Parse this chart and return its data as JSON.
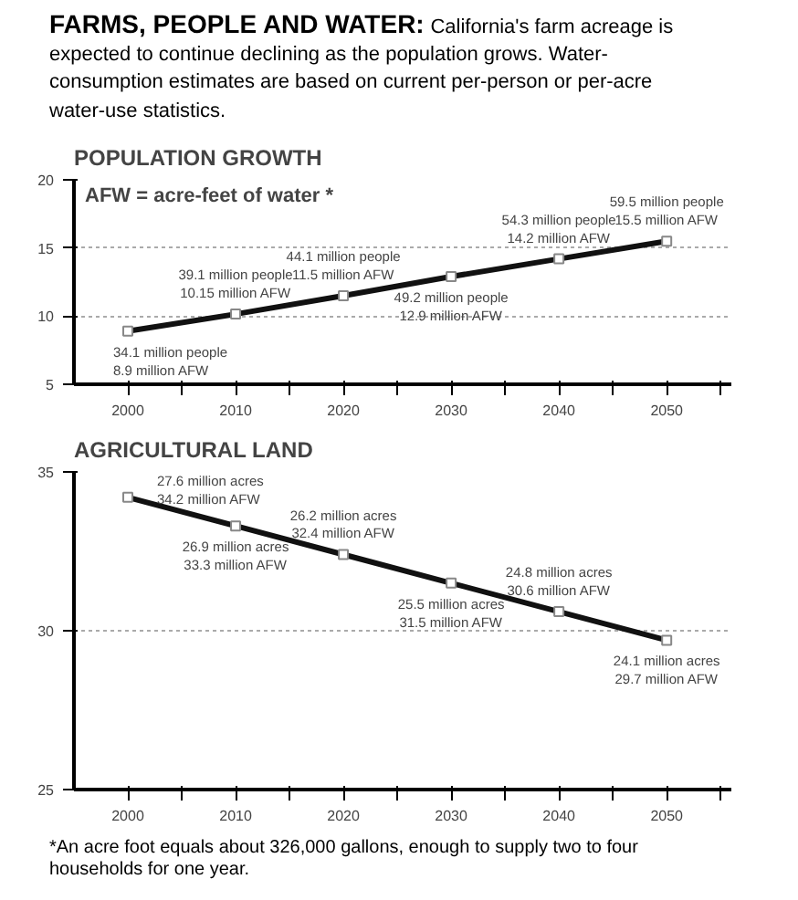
{
  "chart_data": [
    {
      "type": "other",
      "title": "FARMS, PEOPLE AND WATER:",
      "subtitle": "California's farm acreage is expected to continue declining as the population grows. Water-consumption estimates are based on current per-person or per-acre water-use statistics."
    },
    {
      "type": "line",
      "title": "POPULATION GROWTH",
      "x": [
        2000,
        2010,
        2020,
        2030,
        2040,
        2050
      ],
      "annotations": [
        "AFW = acre-feet of water *",
        {
          "text": "34.1 million people\n8.9 million AFW",
          "x": 2000,
          "y": 8.9
        },
        {
          "text": "39.1 million people\n10.15 million AFW",
          "x": 2010,
          "y": 10.15
        },
        {
          "text": "44.1 million people\n11.5 million AFW",
          "x": 2020,
          "y": 11.5
        },
        {
          "text": "49.2 million people\n12.9 million AFW",
          "x": 2030,
          "y": 12.9
        },
        {
          "text": "54.3 million people\n14.2 million AFW",
          "x": 2040,
          "y": 14.2
        },
        {
          "text": "59.5 million people\n15.5 million AFW",
          "x": 2050,
          "y": 15.5
        }
      ],
      "series": [
        {
          "color": "#111111",
          "values": [
            8.9,
            10.15,
            11.5,
            12.9,
            14.2,
            15.5
          ]
        }
      ],
      "xlim": [
        1995,
        2056
      ],
      "xticks": [
        2000,
        {
          "value": 2005,
          "label": null
        },
        2010,
        {
          "value": 2015,
          "label": null
        },
        2020,
        {
          "value": 2025,
          "label": null
        },
        2030,
        {
          "value": 2035,
          "label": null
        },
        2040,
        {
          "value": 2045,
          "label": null
        },
        2050,
        {
          "value": 2055,
          "label": null
        }
      ],
      "ylim": [
        5,
        20
      ],
      "yticks": [
        5,
        10,
        15,
        20
      ],
      "grid": "y",
      "marker": "square",
      "line_style": "solid"
    },
    {
      "type": "line",
      "title": "AGRICULTURAL LAND",
      "x": [
        2000,
        2010,
        2020,
        2030,
        2040,
        2050
      ],
      "annotations": [
        "*An acre foot equals about 326,000 gallons, enough to supply two to four households for one year.",
        {
          "text": "27.6 million acres\n34.2 million AFW",
          "x": 2000,
          "y": 34.2
        },
        {
          "text": "26.9 million acres\n33.3 million AFW",
          "x": 2010,
          "y": 33.3
        },
        {
          "text": "26.2 million acres\n32.4 million AFW",
          "x": 2020,
          "y": 32.4
        },
        {
          "text": "25.5 million acres\n31.5 million AFW",
          "x": 2030,
          "y": 31.5
        },
        {
          "text": "24.8 million acres\n30.6 million AFW",
          "x": 2040,
          "y": 30.6
        },
        {
          "text": "24.1 million acres\n29.7 million AFW",
          "x": 2050,
          "y": 29.7
        }
      ],
      "series": [
        {
          "color": "#111111",
          "values": [
            34.2,
            33.3,
            32.4,
            31.5,
            30.6,
            29.7
          ]
        }
      ],
      "xlim": [
        1995,
        2056
      ],
      "xticks": [
        2000,
        {
          "value": 2005,
          "label": null
        },
        2010,
        {
          "value": 2015,
          "label": null
        },
        2020,
        {
          "value": 2025,
          "label": null
        },
        2030,
        {
          "value": 2035,
          "label": null
        },
        2040,
        {
          "value": 2045,
          "label": null
        },
        2050,
        {
          "value": 2055,
          "label": null
        }
      ],
      "ylim": [
        25,
        35
      ],
      "yticks": [
        25,
        30,
        35
      ],
      "grid": "y",
      "marker": "square",
      "line_style": "solid"
    }
  ]
}
